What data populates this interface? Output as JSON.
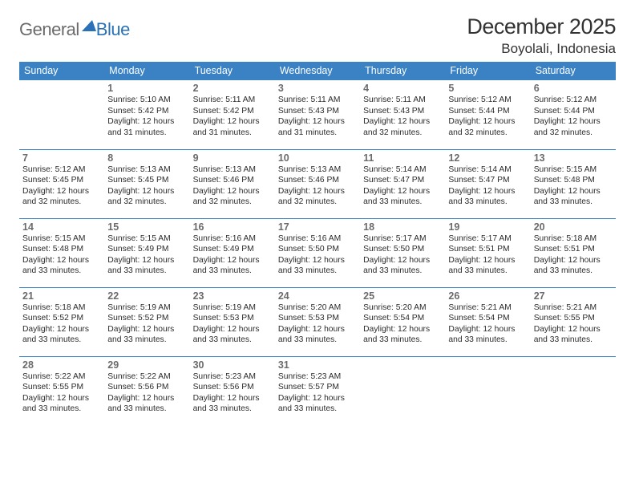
{
  "logo": {
    "gray": "General",
    "blue": "Blue"
  },
  "title": "December 2025",
  "location": "Boyolali, Indonesia",
  "colors": {
    "header_bg": "#3a82c4",
    "header_text": "#ffffff",
    "border": "#3a82c4",
    "daynum": "#6b6b6b",
    "body_text": "#2b2b2b",
    "logo_gray": "#6b6b6b",
    "logo_blue": "#2a71b8"
  },
  "weekdays": [
    "Sunday",
    "Monday",
    "Tuesday",
    "Wednesday",
    "Thursday",
    "Friday",
    "Saturday"
  ],
  "weeks": [
    [
      null,
      {
        "n": "1",
        "sr": "Sunrise: 5:10 AM",
        "ss": "Sunset: 5:42 PM",
        "dl1": "Daylight: 12 hours",
        "dl2": "and 31 minutes."
      },
      {
        "n": "2",
        "sr": "Sunrise: 5:11 AM",
        "ss": "Sunset: 5:42 PM",
        "dl1": "Daylight: 12 hours",
        "dl2": "and 31 minutes."
      },
      {
        "n": "3",
        "sr": "Sunrise: 5:11 AM",
        "ss": "Sunset: 5:43 PM",
        "dl1": "Daylight: 12 hours",
        "dl2": "and 31 minutes."
      },
      {
        "n": "4",
        "sr": "Sunrise: 5:11 AM",
        "ss": "Sunset: 5:43 PM",
        "dl1": "Daylight: 12 hours",
        "dl2": "and 32 minutes."
      },
      {
        "n": "5",
        "sr": "Sunrise: 5:12 AM",
        "ss": "Sunset: 5:44 PM",
        "dl1": "Daylight: 12 hours",
        "dl2": "and 32 minutes."
      },
      {
        "n": "6",
        "sr": "Sunrise: 5:12 AM",
        "ss": "Sunset: 5:44 PM",
        "dl1": "Daylight: 12 hours",
        "dl2": "and 32 minutes."
      }
    ],
    [
      {
        "n": "7",
        "sr": "Sunrise: 5:12 AM",
        "ss": "Sunset: 5:45 PM",
        "dl1": "Daylight: 12 hours",
        "dl2": "and 32 minutes."
      },
      {
        "n": "8",
        "sr": "Sunrise: 5:13 AM",
        "ss": "Sunset: 5:45 PM",
        "dl1": "Daylight: 12 hours",
        "dl2": "and 32 minutes."
      },
      {
        "n": "9",
        "sr": "Sunrise: 5:13 AM",
        "ss": "Sunset: 5:46 PM",
        "dl1": "Daylight: 12 hours",
        "dl2": "and 32 minutes."
      },
      {
        "n": "10",
        "sr": "Sunrise: 5:13 AM",
        "ss": "Sunset: 5:46 PM",
        "dl1": "Daylight: 12 hours",
        "dl2": "and 32 minutes."
      },
      {
        "n": "11",
        "sr": "Sunrise: 5:14 AM",
        "ss": "Sunset: 5:47 PM",
        "dl1": "Daylight: 12 hours",
        "dl2": "and 33 minutes."
      },
      {
        "n": "12",
        "sr": "Sunrise: 5:14 AM",
        "ss": "Sunset: 5:47 PM",
        "dl1": "Daylight: 12 hours",
        "dl2": "and 33 minutes."
      },
      {
        "n": "13",
        "sr": "Sunrise: 5:15 AM",
        "ss": "Sunset: 5:48 PM",
        "dl1": "Daylight: 12 hours",
        "dl2": "and 33 minutes."
      }
    ],
    [
      {
        "n": "14",
        "sr": "Sunrise: 5:15 AM",
        "ss": "Sunset: 5:48 PM",
        "dl1": "Daylight: 12 hours",
        "dl2": "and 33 minutes."
      },
      {
        "n": "15",
        "sr": "Sunrise: 5:15 AM",
        "ss": "Sunset: 5:49 PM",
        "dl1": "Daylight: 12 hours",
        "dl2": "and 33 minutes."
      },
      {
        "n": "16",
        "sr": "Sunrise: 5:16 AM",
        "ss": "Sunset: 5:49 PM",
        "dl1": "Daylight: 12 hours",
        "dl2": "and 33 minutes."
      },
      {
        "n": "17",
        "sr": "Sunrise: 5:16 AM",
        "ss": "Sunset: 5:50 PM",
        "dl1": "Daylight: 12 hours",
        "dl2": "and 33 minutes."
      },
      {
        "n": "18",
        "sr": "Sunrise: 5:17 AM",
        "ss": "Sunset: 5:50 PM",
        "dl1": "Daylight: 12 hours",
        "dl2": "and 33 minutes."
      },
      {
        "n": "19",
        "sr": "Sunrise: 5:17 AM",
        "ss": "Sunset: 5:51 PM",
        "dl1": "Daylight: 12 hours",
        "dl2": "and 33 minutes."
      },
      {
        "n": "20",
        "sr": "Sunrise: 5:18 AM",
        "ss": "Sunset: 5:51 PM",
        "dl1": "Daylight: 12 hours",
        "dl2": "and 33 minutes."
      }
    ],
    [
      {
        "n": "21",
        "sr": "Sunrise: 5:18 AM",
        "ss": "Sunset: 5:52 PM",
        "dl1": "Daylight: 12 hours",
        "dl2": "and 33 minutes."
      },
      {
        "n": "22",
        "sr": "Sunrise: 5:19 AM",
        "ss": "Sunset: 5:52 PM",
        "dl1": "Daylight: 12 hours",
        "dl2": "and 33 minutes."
      },
      {
        "n": "23",
        "sr": "Sunrise: 5:19 AM",
        "ss": "Sunset: 5:53 PM",
        "dl1": "Daylight: 12 hours",
        "dl2": "and 33 minutes."
      },
      {
        "n": "24",
        "sr": "Sunrise: 5:20 AM",
        "ss": "Sunset: 5:53 PM",
        "dl1": "Daylight: 12 hours",
        "dl2": "and 33 minutes."
      },
      {
        "n": "25",
        "sr": "Sunrise: 5:20 AM",
        "ss": "Sunset: 5:54 PM",
        "dl1": "Daylight: 12 hours",
        "dl2": "and 33 minutes."
      },
      {
        "n": "26",
        "sr": "Sunrise: 5:21 AM",
        "ss": "Sunset: 5:54 PM",
        "dl1": "Daylight: 12 hours",
        "dl2": "and 33 minutes."
      },
      {
        "n": "27",
        "sr": "Sunrise: 5:21 AM",
        "ss": "Sunset: 5:55 PM",
        "dl1": "Daylight: 12 hours",
        "dl2": "and 33 minutes."
      }
    ],
    [
      {
        "n": "28",
        "sr": "Sunrise: 5:22 AM",
        "ss": "Sunset: 5:55 PM",
        "dl1": "Daylight: 12 hours",
        "dl2": "and 33 minutes."
      },
      {
        "n": "29",
        "sr": "Sunrise: 5:22 AM",
        "ss": "Sunset: 5:56 PM",
        "dl1": "Daylight: 12 hours",
        "dl2": "and 33 minutes."
      },
      {
        "n": "30",
        "sr": "Sunrise: 5:23 AM",
        "ss": "Sunset: 5:56 PM",
        "dl1": "Daylight: 12 hours",
        "dl2": "and 33 minutes."
      },
      {
        "n": "31",
        "sr": "Sunrise: 5:23 AM",
        "ss": "Sunset: 5:57 PM",
        "dl1": "Daylight: 12 hours",
        "dl2": "and 33 minutes."
      },
      null,
      null,
      null
    ]
  ]
}
